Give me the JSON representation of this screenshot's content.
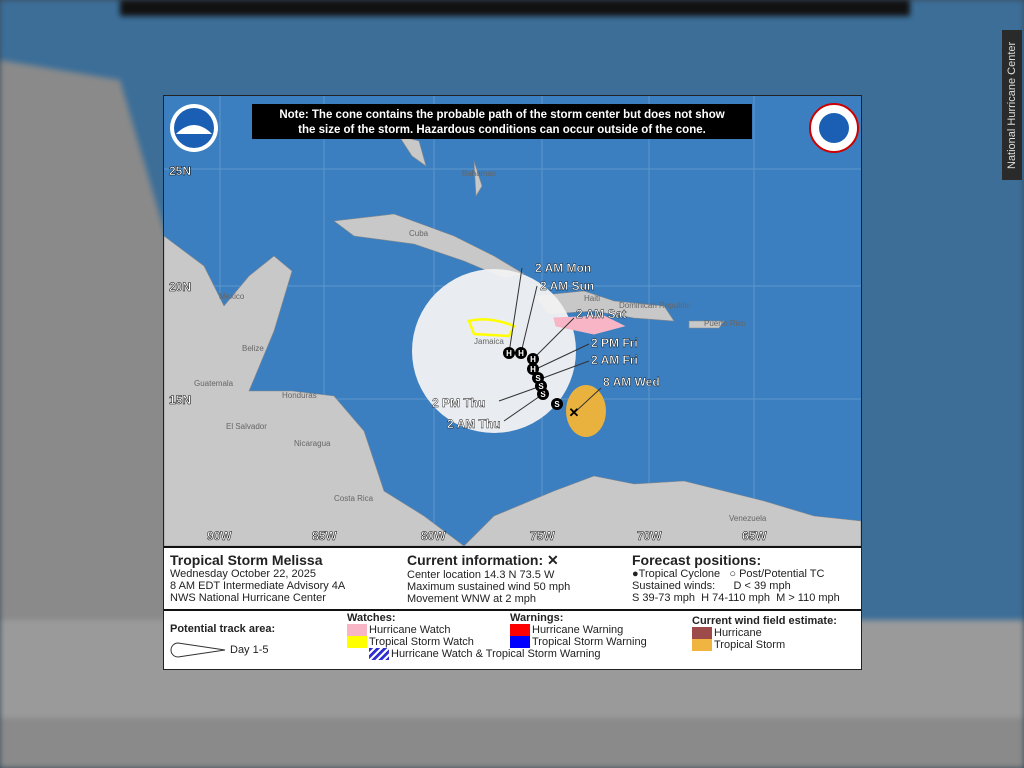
{
  "credit": "National Hurricane Center",
  "note": [
    "Note: The cone contains the probable path of the storm center but does not show",
    "the size of the storm. Hazardous conditions can occur outside of the cone."
  ],
  "logos": {
    "left": "NOAA",
    "right": "National Weather Service"
  },
  "lat_labels": [
    "25N",
    "20N",
    "15N"
  ],
  "lon_labels": [
    "90W",
    "85W",
    "80W",
    "75W",
    "70W",
    "65W"
  ],
  "places": {
    "bahamas": "Bahamas",
    "cuba": "Cuba",
    "mexico": "Mexico",
    "belize": "Belize",
    "guatemala": "Guatemala",
    "honduras": "Honduras",
    "el_salvador": "El Salvador",
    "nicaragua": "Nicaragua",
    "costa_rica": "Costa Rica",
    "jamaica": "Jamaica",
    "haiti": "Haiti",
    "dominican": "Dominican Republic",
    "puerto_rico": "Puerto Rico",
    "venezuela": "Venezuela"
  },
  "forecast_points": [
    {
      "time": "8 AM Wed",
      "type": "X"
    },
    {
      "time": "2 AM Thu",
      "type": "S"
    },
    {
      "time": "2 PM Thu",
      "type": "S"
    },
    {
      "time": "2 AM Fri",
      "type": "S"
    },
    {
      "time": "2 PM Fri",
      "type": "H"
    },
    {
      "time": "2 AM Sat",
      "type": "H"
    },
    {
      "time": "2 AM Sun",
      "type": "H"
    },
    {
      "time": "2 AM Mon",
      "type": "H"
    }
  ],
  "extra_markers": [
    "S",
    "H"
  ],
  "storm": {
    "title": "Tropical Storm Melissa",
    "date": "Wednesday October 22, 2025",
    "advisory": "8 AM EDT Intermediate Advisory 4A",
    "center": "NWS National Hurricane Center"
  },
  "current": {
    "heading": "Current information:",
    "x": "✕",
    "location": "Center location 14.3 N 73.5 W",
    "wind": "Maximum sustained wind 50 mph",
    "movement": "Movement WNW at 2 mph"
  },
  "forecast_legend": {
    "heading": "Forecast positions:",
    "tc": "Tropical Cyclone",
    "post": "Post/Potential TC",
    "sustained": "Sustained winds:",
    "d": "D < 39 mph",
    "shm": "S 39-73 mph  H 74-110 mph  M > 110 mph"
  },
  "legend": {
    "track": "Potential track area:",
    "day": "Day 1-5",
    "watches": "Watches:",
    "hw": "Hurricane Watch",
    "tsw": "Tropical Storm Watch",
    "combo": "Hurricane Watch & Tropical Storm Warning",
    "warnings": "Warnings:",
    "hwarn": "Hurricane Warning",
    "tswarn": "Tropical Storm Warning",
    "wind": "Current wind field estimate:",
    "wh": "Hurricane",
    "wts": "Tropical Storm"
  },
  "colors": {
    "ocean": "#3b7fc0",
    "land": "#c8c8c8",
    "cone": "#f2f2f2",
    "hurricane_watch": "#f7b5c5",
    "ts_watch": "#ffff00",
    "hurricane_warning": "#ff0000",
    "ts_warning": "#0000ff",
    "wind_hurricane": "#9c4a4a",
    "wind_ts": "#f0b540"
  }
}
